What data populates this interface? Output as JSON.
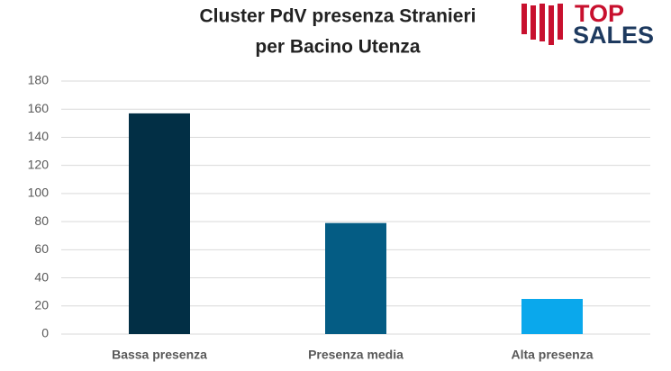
{
  "chart_data": {
    "type": "bar",
    "title": [
      "Cluster PdV presenza Stranieri",
      "per Bacino Utenza"
    ],
    "categories": [
      "Bassa presenza",
      "Presenza media",
      "Alta presenza"
    ],
    "values": [
      157,
      79,
      25
    ],
    "colors": [
      "#022f45",
      "#045c84",
      "#0aa8ec"
    ],
    "ylim": [
      0,
      180
    ],
    "yticks": [
      0,
      20,
      40,
      60,
      80,
      100,
      120,
      140,
      160,
      180
    ],
    "grid": true
  },
  "logo": {
    "top": "TOP",
    "bottom": "SALES"
  }
}
